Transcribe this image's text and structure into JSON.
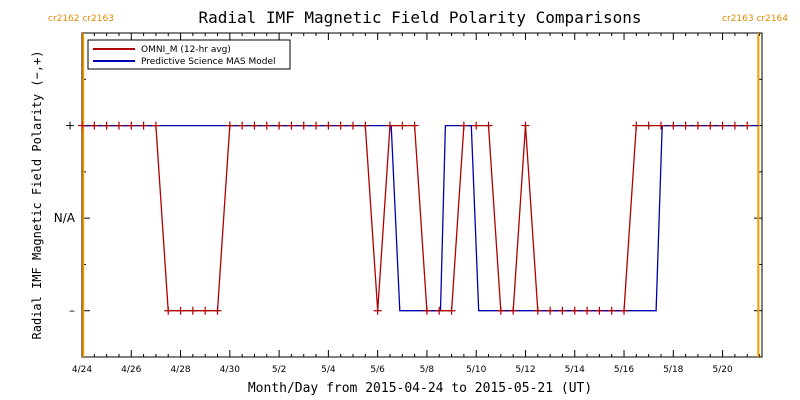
{
  "chart_data": {
    "type": "line",
    "title": "Radial IMF Magnetic Field Polarity Comparisons",
    "xlabel": "Month/Day from 2015-04-24 to 2015-05-21 (UT)",
    "ylabel": "Radial IMF Magnetic Field Polarity (−,+)",
    "x_range_days": [
      0,
      27.6
    ],
    "y_tick_labels": [
      "+",
      "N/A",
      "–"
    ],
    "y_tick_values": [
      1,
      0,
      -1
    ],
    "ylim": [
      -1.5,
      2
    ],
    "x_ticks": [
      {
        "day": 0,
        "label": "4/24"
      },
      {
        "day": 2,
        "label": "4/26"
      },
      {
        "day": 4,
        "label": "4/28"
      },
      {
        "day": 6,
        "label": "4/30"
      },
      {
        "day": 8,
        "label": "5/2"
      },
      {
        "day": 10,
        "label": "5/4"
      },
      {
        "day": 12,
        "label": "5/6"
      },
      {
        "day": 14,
        "label": "5/8"
      },
      {
        "day": 16,
        "label": "5/10"
      },
      {
        "day": 18,
        "label": "5/12"
      },
      {
        "day": 20,
        "label": "5/14"
      },
      {
        "day": 22,
        "label": "5/16"
      },
      {
        "day": 24,
        "label": "5/18"
      },
      {
        "day": 26,
        "label": "5/20"
      }
    ],
    "rotation_markers": [
      {
        "day": 0.05,
        "labels": [
          "cr2162",
          "cr2163"
        ],
        "side": "left"
      },
      {
        "day": 27.45,
        "labels": [
          "cr2163",
          "cr2164"
        ],
        "side": "right"
      }
    ],
    "legend_position": "top-left",
    "series": [
      {
        "name": "OMNI_M (12-hr avg)",
        "color": "#b00000",
        "marker": "+",
        "points": [
          [
            0,
            1
          ],
          [
            0.5,
            1
          ],
          [
            1,
            1
          ],
          [
            1.5,
            1
          ],
          [
            2,
            1
          ],
          [
            2.5,
            1
          ],
          [
            3,
            1
          ],
          [
            3.5,
            -1
          ],
          [
            4,
            -1
          ],
          [
            4.5,
            -1
          ],
          [
            5,
            -1
          ],
          [
            5.5,
            -1
          ],
          [
            6,
            1
          ],
          [
            6.5,
            1
          ],
          [
            7,
            1
          ],
          [
            7.5,
            1
          ],
          [
            8,
            1
          ],
          [
            8.5,
            1
          ],
          [
            9,
            1
          ],
          [
            9.5,
            1
          ],
          [
            10,
            1
          ],
          [
            10.5,
            1
          ],
          [
            11,
            1
          ],
          [
            11.5,
            1
          ],
          [
            12,
            -1
          ],
          [
            12.5,
            1
          ],
          [
            13,
            1
          ],
          [
            13.5,
            1
          ],
          [
            14,
            -1
          ],
          [
            14.5,
            -1
          ],
          [
            15,
            -1
          ],
          [
            15.5,
            1
          ],
          [
            16,
            1
          ],
          [
            16.5,
            1
          ],
          [
            17,
            -1
          ],
          [
            17.5,
            -1
          ],
          [
            18,
            1
          ],
          [
            18.5,
            -1
          ],
          [
            19,
            -1
          ],
          [
            19.5,
            -1
          ],
          [
            20,
            -1
          ],
          [
            20.5,
            -1
          ],
          [
            21,
            -1
          ],
          [
            21.5,
            -1
          ],
          [
            22,
            -1
          ],
          [
            22.5,
            1
          ],
          [
            23,
            1
          ],
          [
            23.5,
            1
          ],
          [
            24,
            1
          ],
          [
            24.5,
            1
          ],
          [
            25,
            1
          ],
          [
            25.5,
            1
          ],
          [
            26,
            1
          ],
          [
            26.5,
            1
          ],
          [
            27,
            1
          ]
        ]
      },
      {
        "name": "Predictive Science MAS Model",
        "color": "#0000b0",
        "points": [
          [
            0,
            1
          ],
          [
            12.55,
            1
          ],
          [
            12.9,
            -1
          ],
          [
            14.55,
            -1
          ],
          [
            14.75,
            1
          ],
          [
            15.8,
            1
          ],
          [
            16.1,
            -1
          ],
          [
            23.3,
            -1
          ],
          [
            23.55,
            1
          ],
          [
            27.45,
            1
          ]
        ]
      }
    ]
  }
}
